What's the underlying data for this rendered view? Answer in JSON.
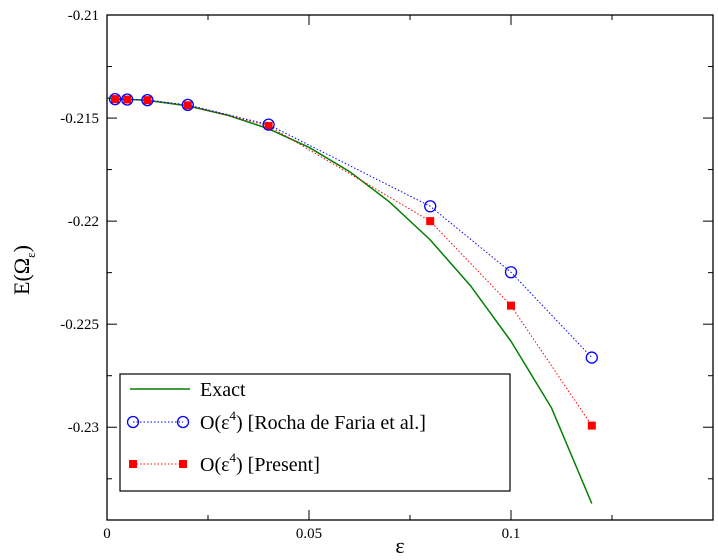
{
  "chart_data": {
    "type": "line",
    "title": "",
    "xlabel": "ε",
    "ylabel": "E(Ω",
    "ylabel_subscript": "ε",
    "ylabel_suffix": ")",
    "xlim": [
      0,
      0.15
    ],
    "ylim": [
      -0.2345,
      -0.21
    ],
    "grid": false,
    "legend_placement": "bottom-left",
    "x_ticks": [
      0,
      0.05,
      0.1
    ],
    "x_tick_labels": [
      "0",
      "0.05",
      "0.1"
    ],
    "y_ticks": [
      -0.21,
      -0.215,
      -0.22,
      -0.225,
      -0.23
    ],
    "y_tick_labels": [
      "-0.21",
      "-0.215",
      "-0.22",
      "-0.225",
      "-0.23"
    ],
    "series": [
      {
        "name": "Exact",
        "style": "solid-line",
        "color": "#008000",
        "x": [
          0,
          0.01,
          0.02,
          0.03,
          0.04,
          0.05,
          0.06,
          0.07,
          0.08,
          0.09,
          0.1,
          0.11,
          0.12
        ],
        "y": [
          -0.21404,
          -0.21414,
          -0.21441,
          -0.21487,
          -0.21552,
          -0.21642,
          -0.21759,
          -0.21908,
          -0.22091,
          -0.22314,
          -0.22583,
          -0.22905,
          -0.2337
        ]
      },
      {
        "name_prefix": "O(ε",
        "name_superscript": "4",
        "name_suffix": ") [Rocha de Faria et al.]",
        "style": "dotted-line-open-circle",
        "color": "#0000ff",
        "x": [
          0.002,
          0.005,
          0.01,
          0.02,
          0.04,
          0.08,
          0.1,
          0.12
        ],
        "y": [
          -0.21408,
          -0.2141,
          -0.21413,
          -0.21436,
          -0.21532,
          -0.21928,
          -0.22248,
          -0.22662
        ]
      },
      {
        "name_prefix": "O(ε",
        "name_superscript": "4",
        "name_suffix": ") [Present]",
        "style": "dotted-line-filled-square",
        "color": "#ff0000",
        "x": [
          0.002,
          0.005,
          0.01,
          0.02,
          0.04,
          0.08,
          0.1,
          0.12
        ],
        "y": [
          -0.21408,
          -0.2141,
          -0.21413,
          -0.21438,
          -0.21538,
          -0.22,
          -0.2241,
          -0.22992
        ]
      }
    ]
  }
}
